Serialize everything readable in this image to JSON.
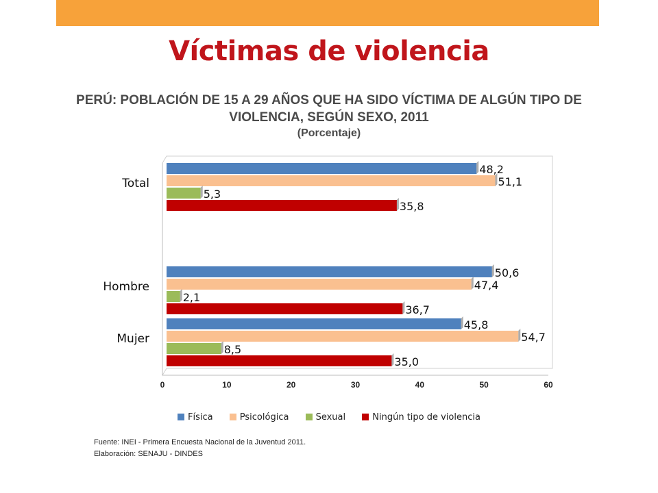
{
  "slide": {
    "title": "Víctimas de violencia"
  },
  "chart_data": {
    "type": "bar",
    "orientation": "horizontal",
    "title_lines": [
      "PERÚ: POBLACIÓN DE 15 A 29 AÑOS QUE HA SIDO VÍCTIMA DE ALGÚN TIPO DE",
      "VIOLENCIA, SEGÚN SEXO, 2011"
    ],
    "unit": "(Porcentaje)",
    "categories": [
      "Total",
      "Hombre",
      "Mujer"
    ],
    "series": [
      {
        "name": "Física",
        "color": "#4f81bd",
        "values": [
          48.2,
          50.6,
          45.8
        ],
        "labels": [
          "48,2",
          "50,6",
          "45,8"
        ]
      },
      {
        "name": "Psicológica",
        "color": "#fac090",
        "values": [
          51.1,
          47.4,
          54.7
        ],
        "labels": [
          "51,1",
          "47,4",
          "54,7"
        ]
      },
      {
        "name": "Sexual",
        "color": "#9bbb59",
        "values": [
          5.3,
          2.1,
          8.5
        ],
        "labels": [
          "5,3",
          "2,1",
          "8,5"
        ]
      },
      {
        "name": "Ningún tipo de violencia",
        "color": "#c00000",
        "values": [
          35.8,
          36.7,
          35.0
        ],
        "labels": [
          "35,8",
          "36,7",
          "35,0"
        ]
      }
    ],
    "xlim": [
      0,
      60
    ],
    "xticks": [
      "0",
      "10",
      "20",
      "30",
      "40",
      "50",
      "60"
    ],
    "grid": false,
    "legend_position": "bottom"
  },
  "footer": {
    "source": "Fuente: INEI - Primera Encuesta Nacional de la Juventud 2011.",
    "elaboration": "Elaboración: SENAJU - DINDES"
  }
}
